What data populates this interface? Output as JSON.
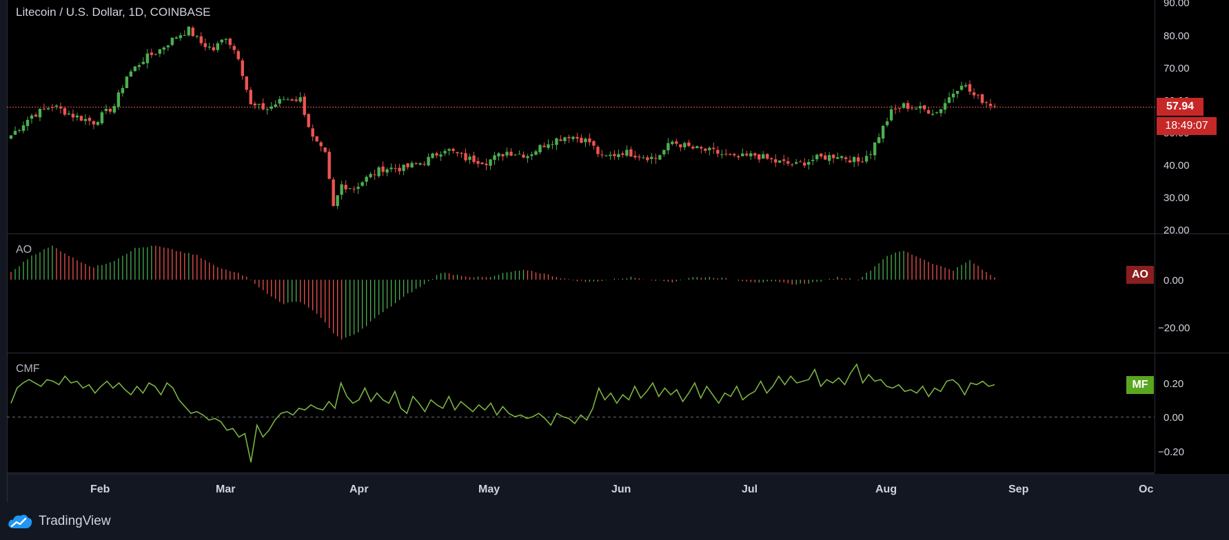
{
  "header": {
    "title": "Litecoin / U.S. Dollar, 1D, COINBASE"
  },
  "footer": {
    "brand": "TradingView"
  },
  "colors": {
    "up": "#26a69a",
    "green": "#4caf50",
    "red": "#ef5350",
    "mf_line": "#7cb342",
    "badge_price": "#c62828",
    "badge_ao": "#8b1f1f",
    "badge_mf": "#5aa620",
    "background": "#000000"
  },
  "price_pane": {
    "last_price": "57.94",
    "countdown": "18:49:07",
    "y_ticks": [
      "90.00",
      "80.00",
      "70.00",
      "60.00",
      "50.00",
      "40.00",
      "30.00",
      "20.00"
    ]
  },
  "ao_pane": {
    "label": "AO",
    "badge": "AO",
    "y_ticks": [
      "0.00",
      "−20.00"
    ]
  },
  "cmf_pane": {
    "label": "CMF",
    "badge": "MF",
    "y_ticks": [
      "0.20",
      "0.00",
      "−0.20"
    ]
  },
  "x_axis": {
    "months": [
      "Feb",
      "Mar",
      "Apr",
      "May",
      "Jun",
      "Jul",
      "Aug",
      "Sep",
      "Oc"
    ]
  },
  "chart_data": [
    {
      "type": "candlestick",
      "title": "Litecoin / U.S. Dollar, 1D, COINBASE",
      "ylim": [
        20,
        90
      ],
      "last_price": 57.94,
      "close_path": [
        [
          0,
          50
        ],
        [
          5,
          56
        ],
        [
          10,
          59
        ],
        [
          15,
          56
        ],
        [
          20,
          54
        ],
        [
          25,
          59
        ],
        [
          28,
          68
        ],
        [
          32,
          73
        ],
        [
          36,
          76
        ],
        [
          40,
          80
        ],
        [
          43,
          82
        ],
        [
          46,
          78
        ],
        [
          49,
          76
        ],
        [
          52,
          80
        ],
        [
          55,
          74
        ],
        [
          58,
          59
        ],
        [
          62,
          58
        ],
        [
          66,
          61
        ],
        [
          70,
          61
        ],
        [
          73,
          49
        ],
        [
          76,
          44
        ],
        [
          78,
          28
        ],
        [
          80,
          35
        ],
        [
          83,
          34
        ],
        [
          86,
          37
        ],
        [
          90,
          40
        ],
        [
          95,
          40
        ],
        [
          100,
          42
        ],
        [
          105,
          46
        ],
        [
          110,
          43
        ],
        [
          115,
          42
        ],
        [
          120,
          45
        ],
        [
          125,
          44
        ],
        [
          130,
          48
        ],
        [
          135,
          50
        ],
        [
          140,
          48
        ],
        [
          143,
          43
        ],
        [
          148,
          45
        ],
        [
          152,
          44
        ],
        [
          156,
          43
        ],
        [
          160,
          48
        ],
        [
          165,
          46
        ],
        [
          170,
          45
        ],
        [
          175,
          43
        ],
        [
          180,
          44
        ],
        [
          185,
          42
        ],
        [
          190,
          41
        ],
        [
          195,
          43
        ],
        [
          200,
          44
        ],
        [
          205,
          42
        ],
        [
          208,
          45
        ],
        [
          210,
          50
        ],
        [
          213,
          57
        ],
        [
          216,
          59
        ],
        [
          220,
          58
        ],
        [
          224,
          57
        ],
        [
          228,
          63
        ],
        [
          230,
          66
        ],
        [
          233,
          62
        ],
        [
          236,
          60
        ],
        [
          238,
          59
        ]
      ]
    },
    {
      "type": "bar",
      "title": "AO",
      "ylim": [
        -26,
        15
      ],
      "path": [
        [
          0,
          3
        ],
        [
          5,
          10
        ],
        [
          10,
          14
        ],
        [
          15,
          9
        ],
        [
          20,
          5
        ],
        [
          25,
          8
        ],
        [
          30,
          13
        ],
        [
          35,
          14
        ],
        [
          40,
          12
        ],
        [
          45,
          10
        ],
        [
          50,
          5
        ],
        [
          55,
          3
        ],
        [
          58,
          0
        ],
        [
          62,
          -6
        ],
        [
          66,
          -10
        ],
        [
          70,
          -9
        ],
        [
          74,
          -14
        ],
        [
          78,
          -22
        ],
        [
          80,
          -25
        ],
        [
          84,
          -22
        ],
        [
          88,
          -16
        ],
        [
          92,
          -11
        ],
        [
          96,
          -6
        ],
        [
          100,
          -2
        ],
        [
          104,
          3
        ],
        [
          108,
          2
        ],
        [
          112,
          1
        ],
        [
          116,
          1
        ],
        [
          120,
          3
        ],
        [
          125,
          4
        ],
        [
          130,
          2
        ],
        [
          135,
          0
        ],
        [
          140,
          -1
        ],
        [
          145,
          0
        ],
        [
          150,
          1
        ],
        [
          155,
          0
        ],
        [
          160,
          -1
        ],
        [
          165,
          1
        ],
        [
          170,
          1
        ],
        [
          175,
          0
        ],
        [
          180,
          -1
        ],
        [
          185,
          -1
        ],
        [
          190,
          -2
        ],
        [
          195,
          -1
        ],
        [
          200,
          1
        ],
        [
          205,
          0
        ],
        [
          208,
          4
        ],
        [
          212,
          10
        ],
        [
          216,
          12
        ],
        [
          220,
          9
        ],
        [
          224,
          6
        ],
        [
          228,
          4
        ],
        [
          232,
          8
        ],
        [
          236,
          3
        ],
        [
          238,
          1
        ]
      ]
    },
    {
      "type": "line",
      "title": "CMF",
      "ylim": [
        -0.28,
        0.33
      ],
      "series": [
        {
          "values": [
            0.08,
            0.17,
            0.2,
            0.22,
            0.2,
            0.18,
            0.22,
            0.21,
            0.19,
            0.24,
            0.2,
            0.21,
            0.17,
            0.19,
            0.14,
            0.18,
            0.21,
            0.17,
            0.2,
            0.16,
            0.13,
            0.18,
            0.14,
            0.2,
            0.18,
            0.13,
            0.2,
            0.17,
            0.1,
            0.06,
            0.02,
            0.03,
            0.01,
            -0.02,
            -0.01,
            -0.03,
            -0.08,
            -0.07,
            -0.12,
            -0.1,
            -0.27,
            -0.05,
            -0.12,
            -0.08,
            -0.02,
            0.02,
            0.03,
            0.01,
            0.05,
            0.04,
            0.07,
            0.05,
            0.04,
            0.09,
            0.05,
            0.2,
            0.12,
            0.08,
            0.1,
            0.17,
            0.09,
            0.14,
            0.1,
            0.08,
            0.15,
            0.05,
            0.02,
            0.12,
            0.08,
            0.03,
            0.1,
            0.07,
            0.05,
            0.12,
            0.04,
            0.09,
            0.06,
            0.03,
            0.07,
            0.04,
            0.08,
            0.01,
            0.06,
            0.02,
            0.0,
            0.01,
            -0.01,
            0.0,
            0.02,
            -0.01,
            -0.05,
            0.02,
            0.0,
            -0.01,
            -0.04,
            0.01,
            -0.02,
            0.05,
            0.17,
            0.1,
            0.14,
            0.08,
            0.13,
            0.1,
            0.18,
            0.11,
            0.15,
            0.2,
            0.12,
            0.17,
            0.13,
            0.16,
            0.09,
            0.14,
            0.2,
            0.11,
            0.18,
            0.13,
            0.08,
            0.14,
            0.12,
            0.18,
            0.1,
            0.13,
            0.15,
            0.21,
            0.14,
            0.18,
            0.24,
            0.19,
            0.24,
            0.2,
            0.21,
            0.22,
            0.28,
            0.18,
            0.22,
            0.2,
            0.23,
            0.19,
            0.26,
            0.31,
            0.2,
            0.25,
            0.21,
            0.22,
            0.18,
            0.17,
            0.19,
            0.15,
            0.16,
            0.14,
            0.18,
            0.12,
            0.17,
            0.15,
            0.21,
            0.22,
            0.19,
            0.13,
            0.2,
            0.19,
            0.21,
            0.18,
            0.19
          ]
        }
      ]
    }
  ]
}
